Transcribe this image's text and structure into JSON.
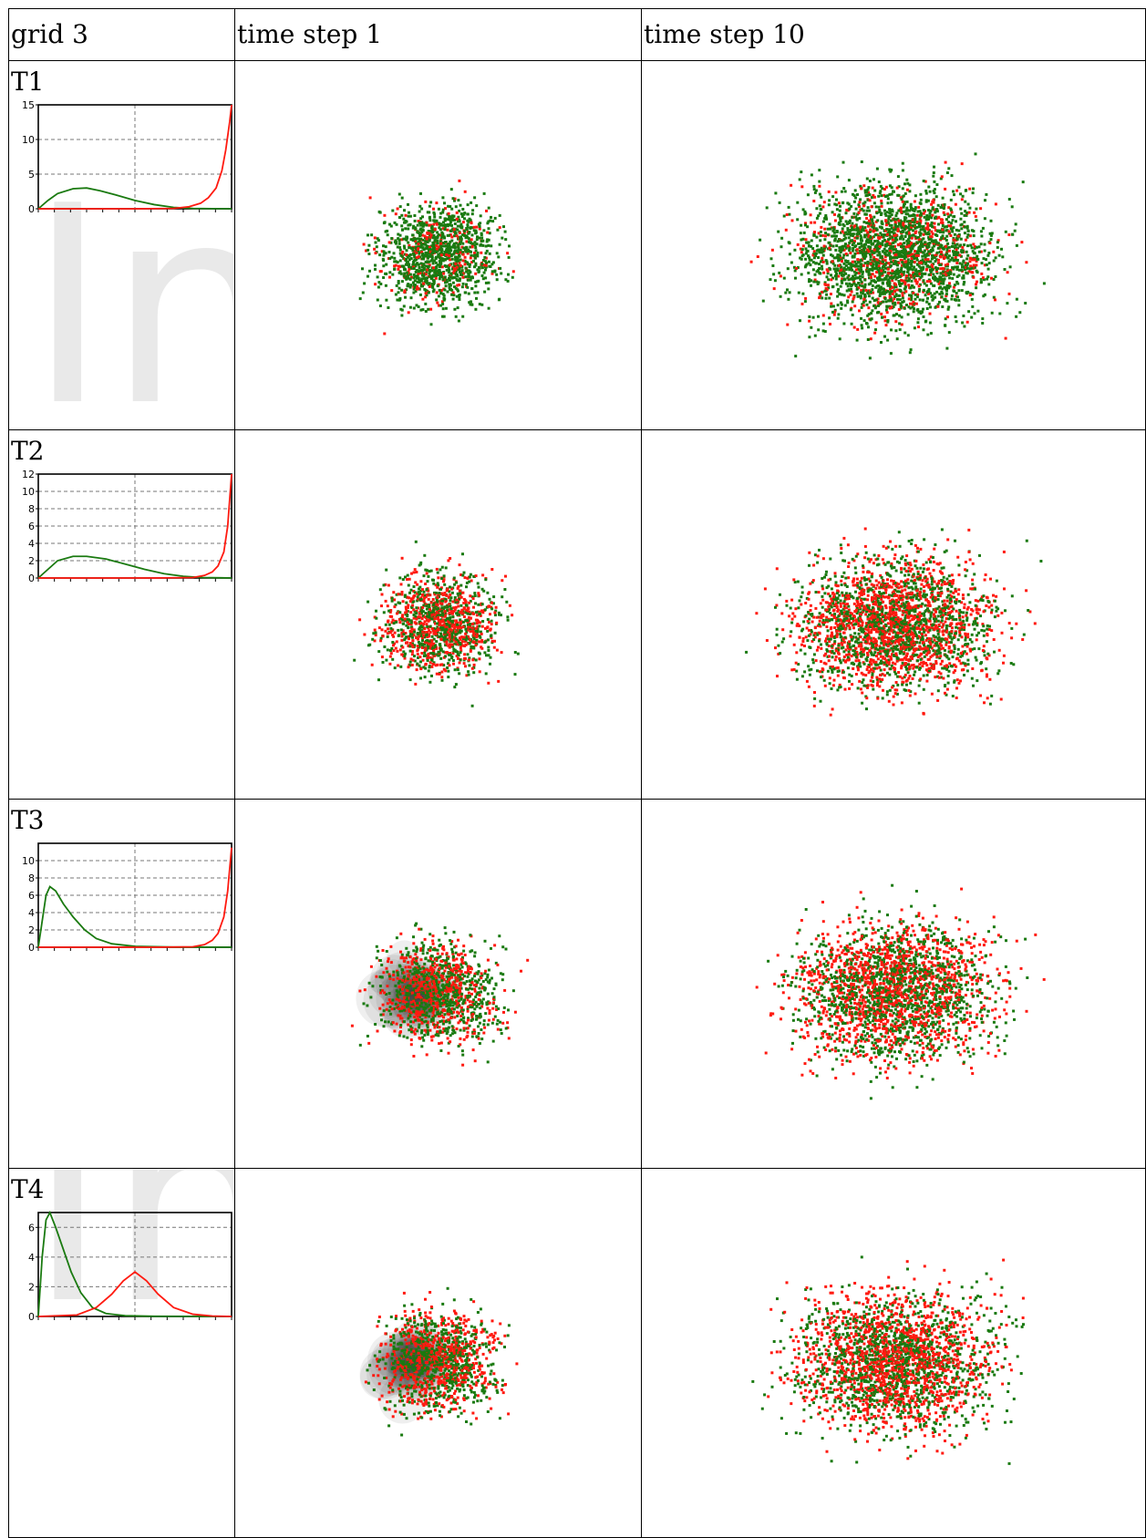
{
  "table": {
    "header": [
      "grid 3",
      "time step 1",
      "time step 10"
    ],
    "rows": [
      {
        "label": "T1"
      },
      {
        "label": "T2"
      },
      {
        "label": "T3"
      },
      {
        "label": "T4"
      }
    ]
  },
  "colors": {
    "green": "#1a7a10",
    "red": "#ff1a10",
    "axis": "#000000",
    "grid": "#777777"
  },
  "chart_data": [
    {
      "type": "line",
      "panel": "T1",
      "ylim": [
        0,
        15
      ],
      "yticks": [
        "0",
        "5",
        "10",
        "15"
      ],
      "grid": true,
      "series": [
        {
          "color": "green",
          "x": [
            0,
            0.05,
            0.1,
            0.18,
            0.25,
            0.32,
            0.4,
            0.5,
            0.6,
            0.7,
            0.8,
            0.9,
            1.0
          ],
          "y": [
            0,
            1.2,
            2.2,
            2.9,
            3.0,
            2.6,
            2.0,
            1.2,
            0.6,
            0.2,
            0.05,
            0.02,
            0
          ]
        },
        {
          "color": "red",
          "x": [
            0,
            0.5,
            0.7,
            0.78,
            0.84,
            0.88,
            0.92,
            0.95,
            0.97,
            0.99,
            1.0
          ],
          "y": [
            0,
            0,
            0.05,
            0.3,
            0.8,
            1.6,
            3.0,
            5.5,
            8.5,
            12.5,
            15
          ]
        }
      ]
    },
    {
      "type": "line",
      "panel": "T2",
      "ylim": [
        0,
        12
      ],
      "yticks": [
        "0",
        "2",
        "4",
        "6",
        "8",
        "10",
        "12"
      ],
      "grid": true,
      "series": [
        {
          "color": "green",
          "x": [
            0,
            0.05,
            0.1,
            0.18,
            0.25,
            0.35,
            0.45,
            0.55,
            0.65,
            0.75,
            0.85,
            0.95,
            1.0
          ],
          "y": [
            0,
            1.0,
            2.0,
            2.5,
            2.5,
            2.2,
            1.6,
            1.0,
            0.5,
            0.2,
            0.05,
            0.02,
            0
          ]
        },
        {
          "color": "red",
          "x": [
            0,
            0.6,
            0.8,
            0.86,
            0.9,
            0.93,
            0.96,
            0.98,
            0.99,
            1.0
          ],
          "y": [
            0,
            0,
            0.05,
            0.3,
            0.7,
            1.4,
            3.0,
            6.0,
            9.0,
            12
          ]
        }
      ]
    },
    {
      "type": "line",
      "panel": "T3",
      "ylim": [
        0,
        12
      ],
      "yticks": [
        "0",
        "2",
        "4",
        "6",
        "8",
        "10"
      ],
      "grid": true,
      "series": [
        {
          "color": "green",
          "x": [
            0,
            0.02,
            0.04,
            0.06,
            0.09,
            0.13,
            0.18,
            0.24,
            0.3,
            0.38,
            0.5,
            0.7,
            1.0
          ],
          "y": [
            0,
            3.0,
            6.0,
            7.0,
            6.5,
            5.0,
            3.5,
            2.0,
            1.0,
            0.4,
            0.1,
            0.02,
            0
          ]
        },
        {
          "color": "red",
          "x": [
            0,
            0.6,
            0.8,
            0.86,
            0.9,
            0.93,
            0.96,
            0.98,
            0.99,
            1.0
          ],
          "y": [
            0,
            0,
            0.05,
            0.3,
            0.8,
            1.6,
            3.5,
            6.5,
            9.0,
            11.5
          ]
        }
      ]
    },
    {
      "type": "line",
      "panel": "T4",
      "ylim": [
        0,
        7
      ],
      "yticks": [
        "0",
        "2",
        "4",
        "6"
      ],
      "grid": true,
      "series": [
        {
          "color": "green",
          "x": [
            0,
            0.02,
            0.04,
            0.06,
            0.09,
            0.13,
            0.17,
            0.22,
            0.28,
            0.35,
            0.45,
            0.6,
            1.0
          ],
          "y": [
            0,
            4.0,
            6.5,
            7.0,
            6.0,
            4.5,
            3.0,
            1.6,
            0.6,
            0.2,
            0.05,
            0.01,
            0
          ]
        },
        {
          "color": "red",
          "x": [
            0,
            0.2,
            0.3,
            0.38,
            0.44,
            0.5,
            0.56,
            0.62,
            0.7,
            0.8,
            0.9,
            1.0
          ],
          "y": [
            0,
            0.1,
            0.6,
            1.5,
            2.4,
            3.0,
            2.4,
            1.5,
            0.6,
            0.15,
            0.03,
            0
          ]
        }
      ]
    }
  ]
}
